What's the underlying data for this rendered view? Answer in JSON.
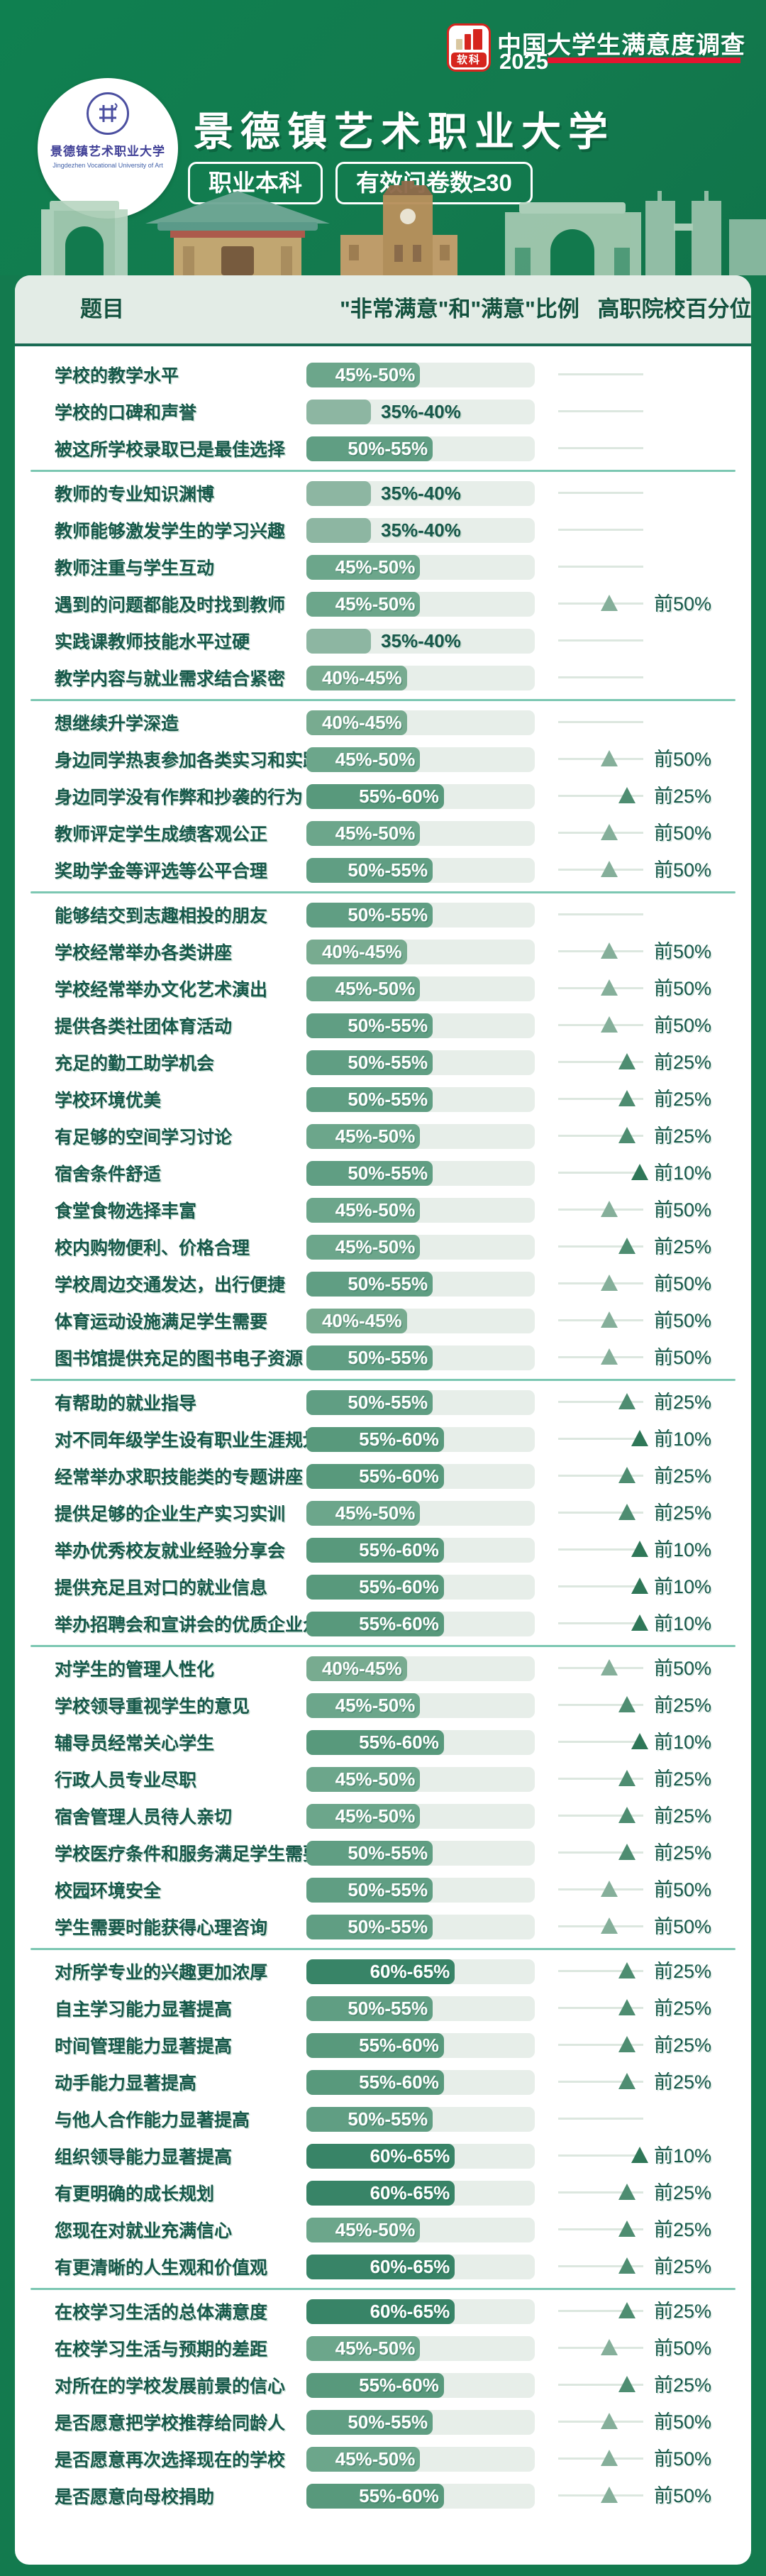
{
  "header": {
    "logo_text": "软科",
    "survey_title": "中国大学生满意度调查",
    "survey_year": "2025",
    "university_name": "景德镇艺术职业大学",
    "emblem_name": "景德镇艺术职业大学",
    "emblem_name_en": "Jingdezhen Vocational University of Art",
    "tags": [
      "职业本科",
      "有效问卷数≥30"
    ]
  },
  "table": {
    "columns": [
      "题目",
      "\"非常满意\"和\"满意\"比例",
      "高职院校百分位"
    ],
    "section_sizes": [
      3,
      6,
      5,
      13,
      7,
      8,
      9,
      6
    ]
  },
  "buckets": {
    "35%-40%": {
      "width_pct": 28.3,
      "color": "#8DB6A2",
      "label_style": "out"
    },
    "40%-45%": {
      "width_pct": 44.0,
      "color": "#78AB90",
      "label_style": "in"
    },
    "45%-50%": {
      "width_pct": 49.8,
      "color": "#6CA68B",
      "label_style": "in"
    },
    "50%-55%": {
      "width_pct": 55.3,
      "color": "#609E83",
      "label_style": "in"
    },
    "55%-60%": {
      "width_pct": 60.2,
      "color": "#58997C",
      "label_style": "in"
    },
    "60%-65%": {
      "width_pct": 65.0,
      "color": "#388467",
      "label_style": "in"
    }
  },
  "percentile_levels": {
    "前50%": {
      "pos_pct": 60,
      "color": "#85AF9A"
    },
    "前25%": {
      "pos_pct": 81,
      "color": "#4E8D71"
    },
    "前10%": {
      "pos_pct": 96,
      "color": "#2F7758"
    }
  },
  "colors": {
    "page_bg": "#137A4E",
    "card_bg": "#FFFFFF",
    "header_band": "#E3ECE6",
    "header_underline": "#1A6B54",
    "section_divider": "#7CC7B2",
    "bar_track": "#E7EEE9",
    "text_dark_green": "#17584A",
    "brand_red": "#D6251E",
    "accent_red_line": "#E31530"
  },
  "chart_data": {
    "type": "bar",
    "title": "景德镇艺术职业大学 — 中国大学生满意度调查 2025",
    "xlabel": "\"非常满意\"和\"满意\"比例",
    "ylabel": "题目",
    "xlim": [
      0,
      100
    ],
    "legend": "高职院校百分位: 前50% / 前25% / 前10%",
    "categories": [
      "学校的教学水平",
      "学校的口碑和声誉",
      "被这所学校录取已是最佳选择",
      "教师的专业知识渊博",
      "教师能够激发学生的学习兴趣",
      "教师注重与学生互动",
      "遇到的问题都能及时找到教师",
      "实践课教师技能水平过硬",
      "教学内容与就业需求结合紧密",
      "想继续升学深造",
      "身边同学热衷参加各类实习和实践",
      "身边同学没有作弊和抄袭的行为",
      "教师评定学生成绩客观公正",
      "奖助学金等评选等公平合理",
      "能够结交到志趣相投的朋友",
      "学校经常举办各类讲座",
      "学校经常举办文化艺术演出",
      "提供各类社团体育活动",
      "充足的勤工助学机会",
      "学校环境优美",
      "有足够的空间学习讨论",
      "宿舍条件舒适",
      "食堂食物选择丰富",
      "校内购物便利、价格合理",
      "学校周边交通发达，出行便捷",
      "体育运动设施满足学生需要",
      "图书馆提供充足的图书电子资源",
      "有帮助的就业指导",
      "对不同年级学生设有职业生涯规划课",
      "经常举办求职技能类的专题讲座",
      "提供足够的企业生产实习实训",
      "举办优秀校友就业经验分享会",
      "提供充足且对口的就业信息",
      "举办招聘会和宣讲会的优质企业众多",
      "对学生的管理人性化",
      "学校领导重视学生的意见",
      "辅导员经常关心学生",
      "行政人员专业尽职",
      "宿舍管理人员待人亲切",
      "学校医疗条件和服务满足学生需要",
      "校园环境安全",
      "学生需要时能获得心理咨询",
      "对所学专业的兴趣更加浓厚",
      "自主学习能力显著提高",
      "时间管理能力显著提高",
      "动手能力显著提高",
      "与他人合作能力显著提高",
      "组织领导能力显著提高",
      "有更明确的成长规划",
      "您现在对就业充满信心",
      "有更清晰的人生观和价值观",
      "在校学习生活的总体满意度",
      "在校学习生活与预期的差距",
      "对所在的学校发展前景的信心",
      "是否愿意把学校推荐给同龄人",
      "是否愿意再次选择现在的学校",
      "是否愿意向母校捐助"
    ],
    "ranges": [
      "45%-50%",
      "35%-40%",
      "50%-55%",
      "35%-40%",
      "35%-40%",
      "45%-50%",
      "45%-50%",
      "35%-40%",
      "40%-45%",
      "40%-45%",
      "45%-50%",
      "55%-60%",
      "45%-50%",
      "50%-55%",
      "50%-55%",
      "40%-45%",
      "45%-50%",
      "50%-55%",
      "50%-55%",
      "50%-55%",
      "45%-50%",
      "50%-55%",
      "45%-50%",
      "45%-50%",
      "50%-55%",
      "40%-45%",
      "50%-55%",
      "50%-55%",
      "55%-60%",
      "55%-60%",
      "45%-50%",
      "55%-60%",
      "55%-60%",
      "55%-60%",
      "40%-45%",
      "45%-50%",
      "55%-60%",
      "45%-50%",
      "45%-50%",
      "50%-55%",
      "50%-55%",
      "50%-55%",
      "60%-65%",
      "50%-55%",
      "55%-60%",
      "55%-60%",
      "50%-55%",
      "60%-65%",
      "60%-65%",
      "45%-50%",
      "60%-65%",
      "60%-65%",
      "45%-50%",
      "55%-60%",
      "50%-55%",
      "45%-50%",
      "55%-60%"
    ],
    "values": [
      47.5,
      37.5,
      52.5,
      37.5,
      37.5,
      47.5,
      47.5,
      37.5,
      42.5,
      42.5,
      47.5,
      57.5,
      47.5,
      52.5,
      52.5,
      42.5,
      47.5,
      52.5,
      52.5,
      52.5,
      47.5,
      52.5,
      47.5,
      47.5,
      52.5,
      42.5,
      52.5,
      52.5,
      57.5,
      57.5,
      47.5,
      57.5,
      57.5,
      57.5,
      42.5,
      47.5,
      57.5,
      47.5,
      47.5,
      52.5,
      52.5,
      52.5,
      62.5,
      52.5,
      57.5,
      57.5,
      52.5,
      62.5,
      62.5,
      47.5,
      62.5,
      62.5,
      47.5,
      57.5,
      52.5,
      47.5,
      57.5
    ],
    "percentiles": [
      null,
      null,
      null,
      null,
      null,
      null,
      "前50%",
      null,
      null,
      null,
      "前50%",
      "前25%",
      "前50%",
      "前50%",
      null,
      "前50%",
      "前50%",
      "前50%",
      "前25%",
      "前25%",
      "前25%",
      "前10%",
      "前50%",
      "前25%",
      "前50%",
      "前50%",
      "前50%",
      "前25%",
      "前10%",
      "前25%",
      "前25%",
      "前10%",
      "前10%",
      "前10%",
      "前50%",
      "前25%",
      "前10%",
      "前25%",
      "前25%",
      "前25%",
      "前50%",
      "前50%",
      "前25%",
      "前25%",
      "前25%",
      "前25%",
      null,
      "前10%",
      "前25%",
      "前25%",
      "前25%",
      "前25%",
      "前50%",
      "前25%",
      "前50%",
      "前50%",
      "前50%"
    ]
  }
}
